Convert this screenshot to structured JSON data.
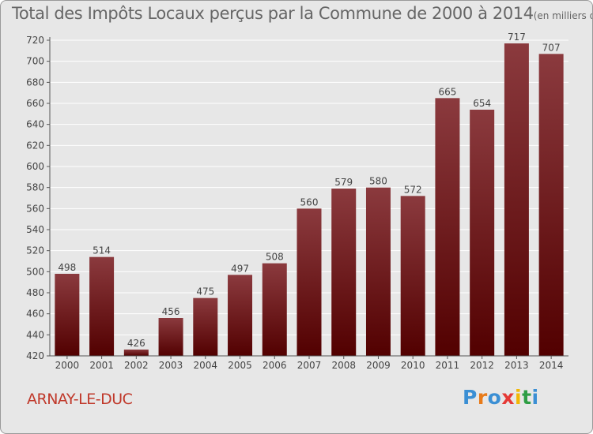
{
  "title": {
    "main": "Total des Impôts Locaux perçus par la Commune de 2000 à 2014",
    "unit": "(en milliers d'€)"
  },
  "commune": "ARNAY-LE-DUC",
  "logo": {
    "letters": [
      "P",
      "r",
      "o",
      "x",
      "i",
      "t",
      "i"
    ],
    "colors": [
      "#3b8fd4",
      "#e87b1a",
      "#3b8fd4",
      "#e53935",
      "#f2b705",
      "#2e9e44",
      "#3b8fd4"
    ]
  },
  "chart_data": {
    "type": "bar",
    "title": "Total des Impôts Locaux perçus par la Commune de 2000 à 2014",
    "ylabel": "en milliers d'€",
    "xlabel": "",
    "categories": [
      "2000",
      "2001",
      "2002",
      "2003",
      "2004",
      "2005",
      "2006",
      "2007",
      "2008",
      "2009",
      "2010",
      "2011",
      "2012",
      "2013",
      "2014"
    ],
    "values": [
      498,
      514,
      426,
      456,
      475,
      497,
      508,
      560,
      579,
      580,
      572,
      665,
      654,
      717,
      707
    ],
    "ylim": [
      420,
      720
    ],
    "yticks": [
      420,
      440,
      460,
      480,
      500,
      520,
      540,
      560,
      580,
      600,
      620,
      640,
      660,
      680,
      700,
      720
    ],
    "grid": true,
    "colors": {
      "bar_top": "#8b3a3e",
      "bar_bottom": "#520000",
      "grid": "#ffffff",
      "label": "#444444"
    }
  }
}
